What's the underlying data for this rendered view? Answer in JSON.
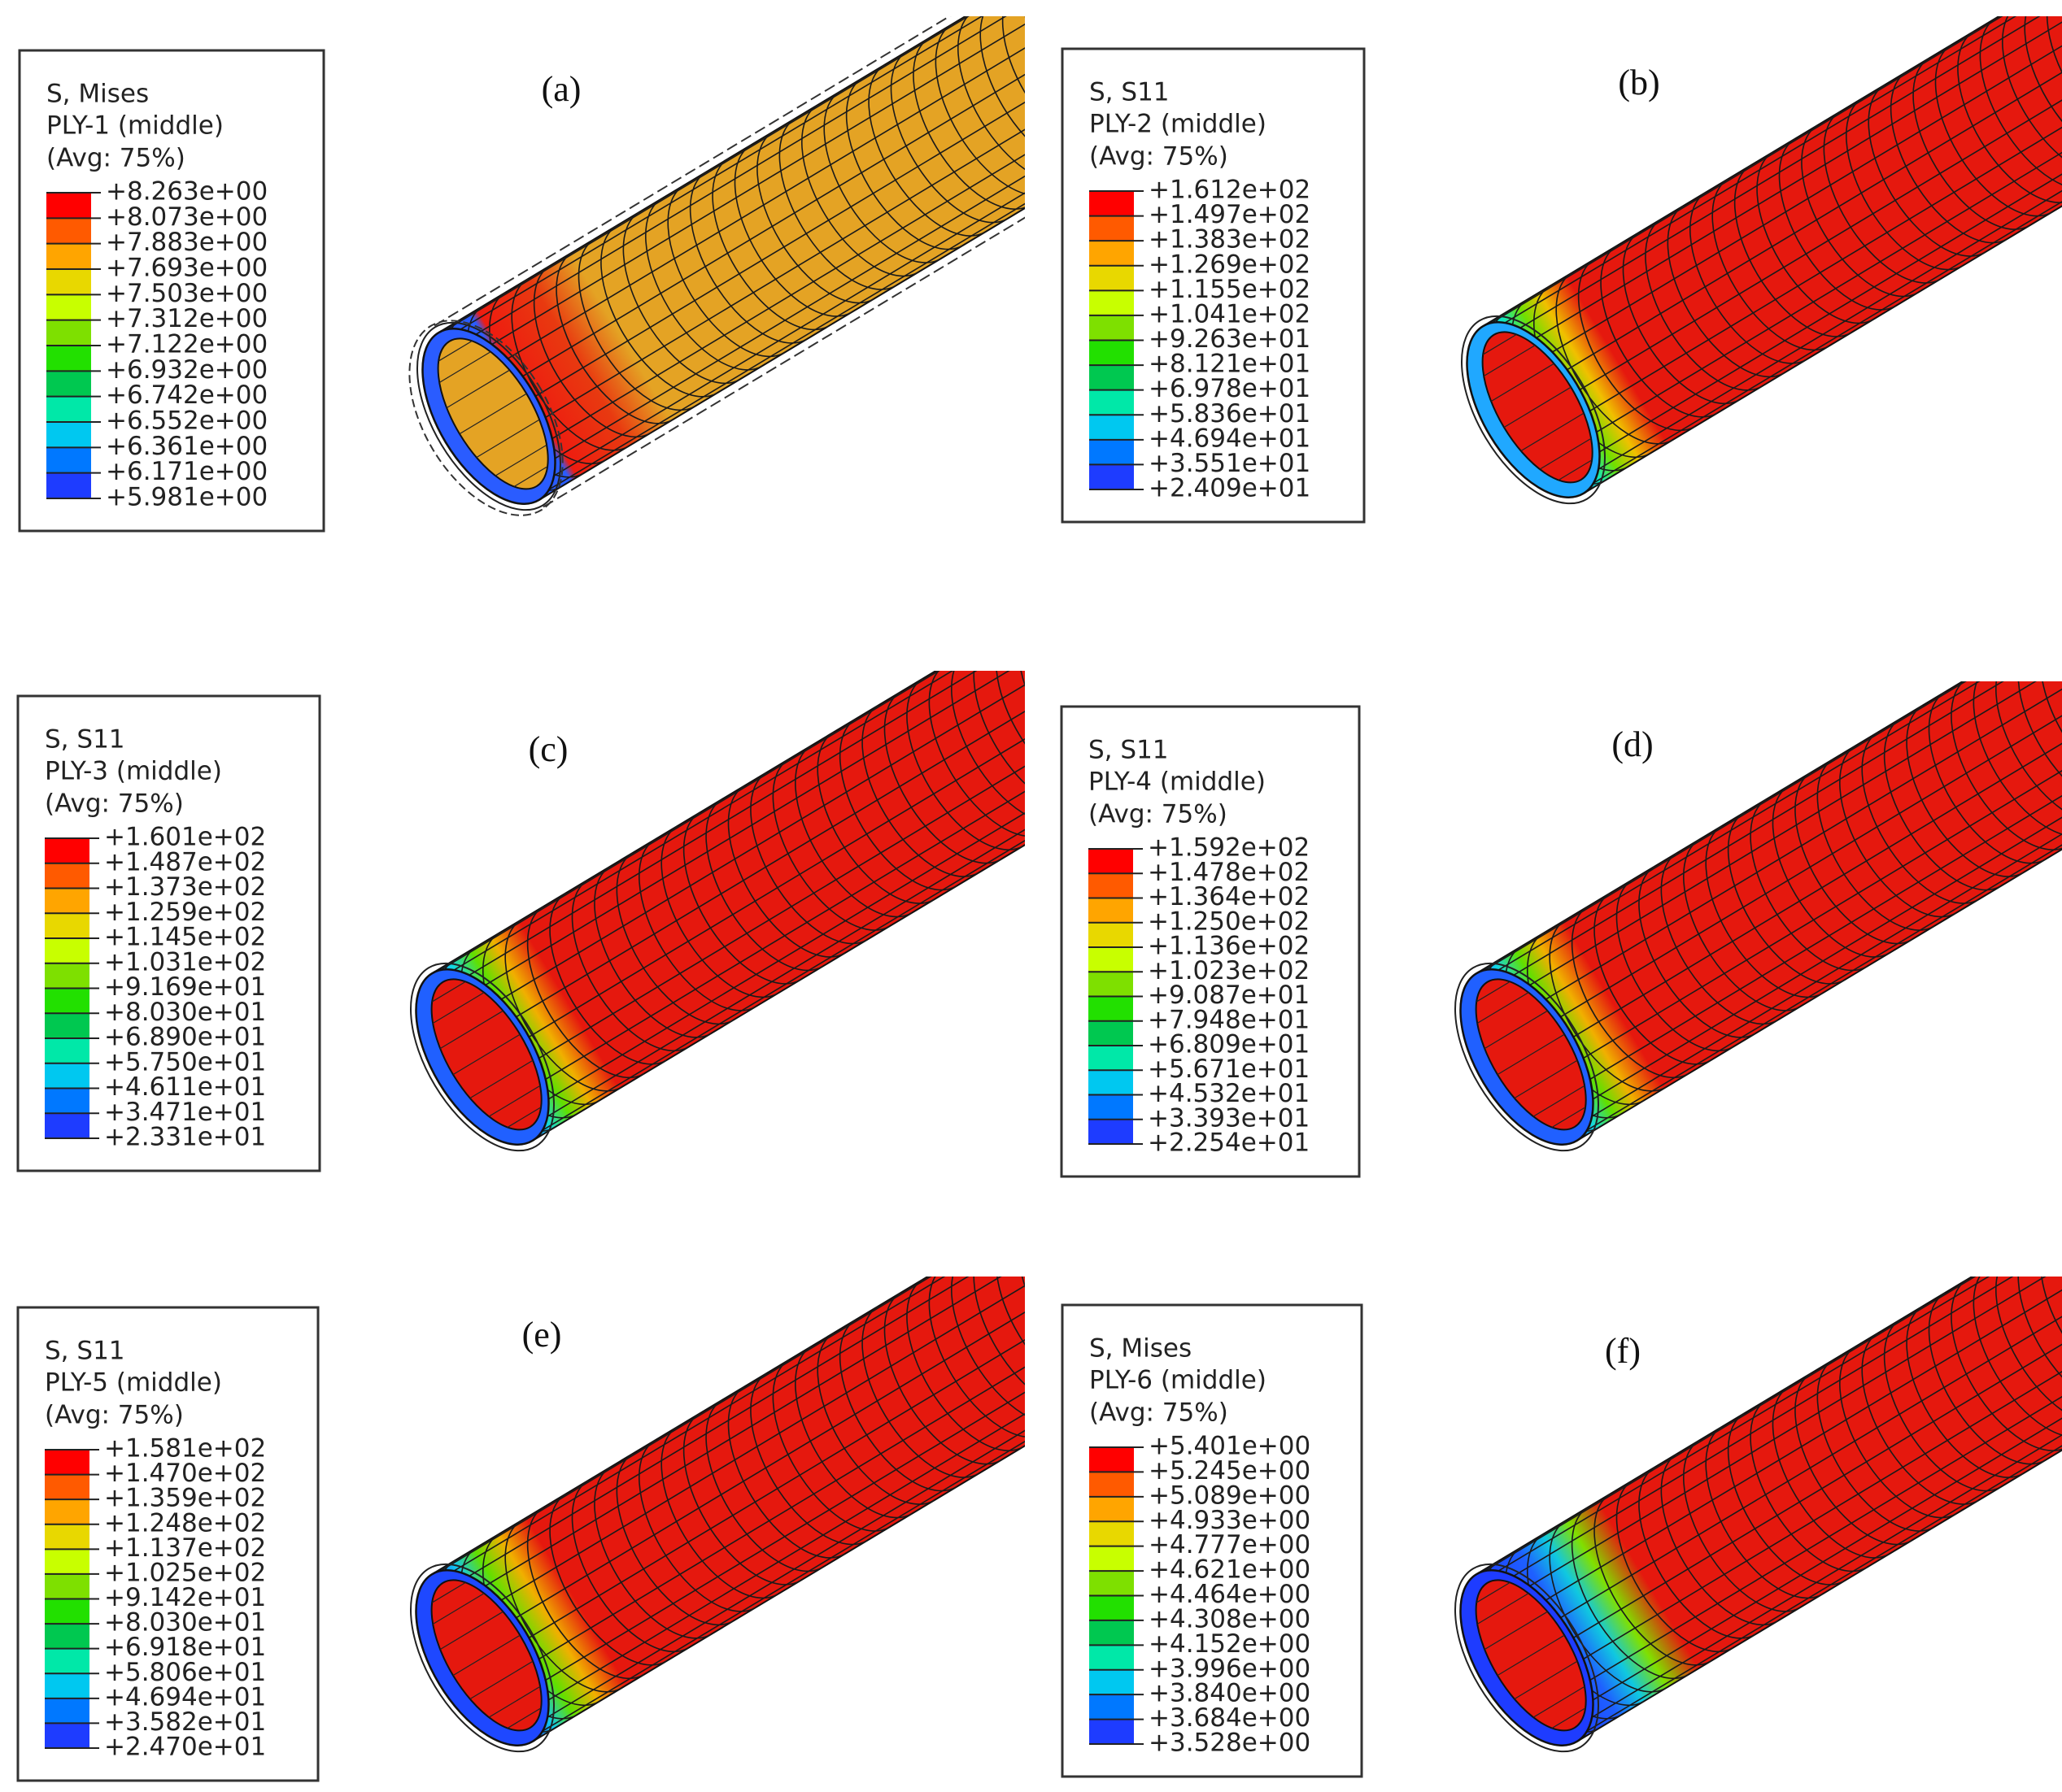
{
  "panels": [
    {
      "label": "(a)",
      "legend": {
        "title": "S, Mises",
        "ply": "PLY-1 (middle)",
        "avg": "(Avg: 75%)",
        "levels": [
          "+8.263e+00",
          "+8.073e+00",
          "+7.883e+00",
          "+7.693e+00",
          "+7.503e+00",
          "+7.312e+00",
          "+7.122e+00",
          "+6.932e+00",
          "+6.742e+00",
          "+6.552e+00",
          "+6.361e+00",
          "+6.171e+00",
          "+5.981e+00"
        ]
      }
    },
    {
      "label": "(b)",
      "legend": {
        "title": "S, S11",
        "ply": "PLY-2 (middle)",
        "avg": "(Avg: 75%)",
        "levels": [
          "+1.612e+02",
          "+1.497e+02",
          "+1.383e+02",
          "+1.269e+02",
          "+1.155e+02",
          "+1.041e+02",
          "+9.263e+01",
          "+8.121e+01",
          "+6.978e+01",
          "+5.836e+01",
          "+4.694e+01",
          "+3.551e+01",
          "+2.409e+01"
        ]
      }
    },
    {
      "label": "(c)",
      "legend": {
        "title": "S, S11",
        "ply": "PLY-3 (middle)",
        "avg": "(Avg: 75%)",
        "levels": [
          "+1.601e+02",
          "+1.487e+02",
          "+1.373e+02",
          "+1.259e+02",
          "+1.145e+02",
          "+1.031e+02",
          "+9.169e+01",
          "+8.030e+01",
          "+6.890e+01",
          "+5.750e+01",
          "+4.611e+01",
          "+3.471e+01",
          "+2.331e+01"
        ]
      }
    },
    {
      "label": "(d)",
      "legend": {
        "title": "S, S11",
        "ply": "PLY-4 (middle)",
        "avg": "(Avg: 75%)",
        "levels": [
          "+1.592e+02",
          "+1.478e+02",
          "+1.364e+02",
          "+1.250e+02",
          "+1.136e+02",
          "+1.023e+02",
          "+9.087e+01",
          "+7.948e+01",
          "+6.809e+01",
          "+5.671e+01",
          "+4.532e+01",
          "+3.393e+01",
          "+2.254e+01"
        ]
      }
    },
    {
      "label": "(e)",
      "legend": {
        "title": "S, S11",
        "ply": "PLY-5 (middle)",
        "avg": "(Avg: 75%)",
        "levels": [
          "+1.581e+02",
          "+1.470e+02",
          "+1.359e+02",
          "+1.248e+02",
          "+1.137e+02",
          "+1.025e+02",
          "+9.142e+01",
          "+8.030e+01",
          "+6.918e+01",
          "+5.806e+01",
          "+4.694e+01",
          "+3.582e+01",
          "+2.470e+01"
        ]
      }
    },
    {
      "label": "(f)",
      "legend": {
        "title": "S, Mises",
        "ply": "PLY-6 (middle)",
        "avg": "(Avg: 75%)",
        "levels": [
          "+5.401e+00",
          "+5.245e+00",
          "+5.089e+00",
          "+4.933e+00",
          "+4.777e+00",
          "+4.621e+00",
          "+4.464e+00",
          "+4.308e+00",
          "+4.152e+00",
          "+3.996e+00",
          "+3.840e+00",
          "+3.684e+00",
          "+3.528e+00"
        ]
      }
    }
  ]
}
